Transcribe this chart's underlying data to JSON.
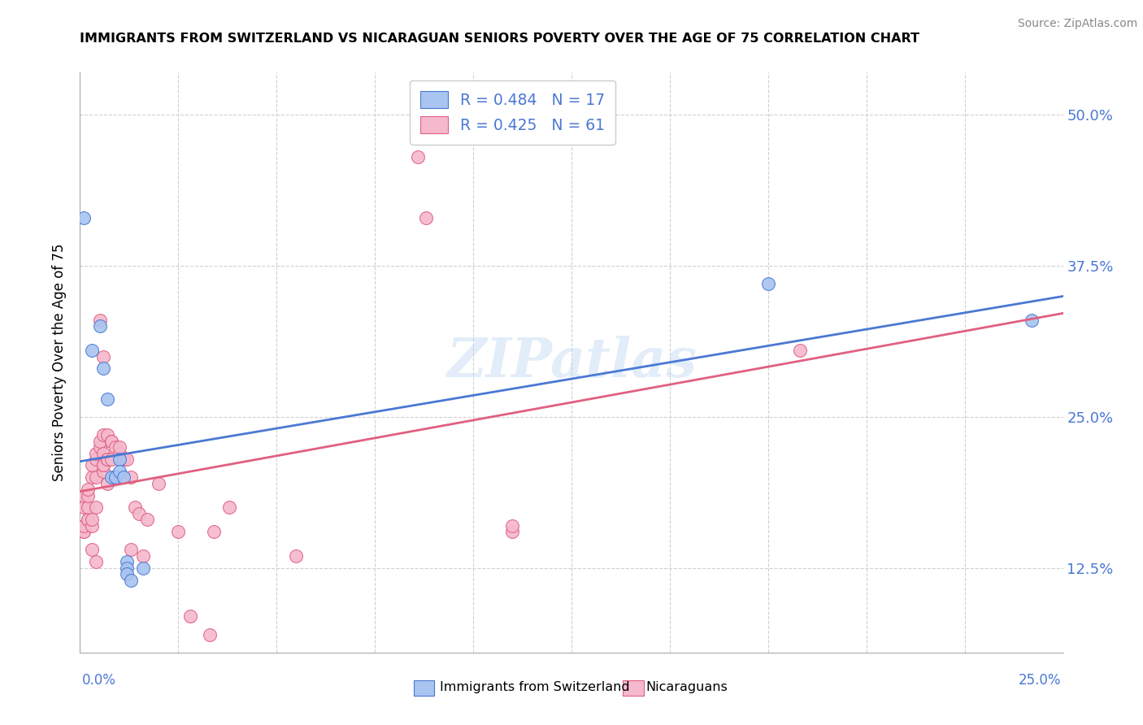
{
  "title": "IMMIGRANTS FROM SWITZERLAND VS NICARAGUAN SENIORS POVERTY OVER THE AGE OF 75 CORRELATION CHART",
  "source": "Source: ZipAtlas.com",
  "ylabel": "Seniors Poverty Over the Age of 75",
  "ytick_labels": [
    "12.5%",
    "25.0%",
    "37.5%",
    "50.0%"
  ],
  "ytick_values": [
    0.125,
    0.25,
    0.375,
    0.5
  ],
  "xmin": 0.0,
  "xmax": 0.25,
  "ymin": 0.055,
  "ymax": 0.535,
  "watermark": "ZIPatlas",
  "legend_blue_label": "R = 0.484   N = 17",
  "legend_pink_label": "R = 0.425   N = 61",
  "legend_sub_blue": "Immigrants from Switzerland",
  "legend_sub_pink": "Nicaraguans",
  "blue_color": "#a8c4f0",
  "pink_color": "#f5b8cc",
  "blue_line_color": "#4a78d4",
  "pink_line_color": "#e06080",
  "blue_scatter": [
    [
      0.001,
      0.415
    ],
    [
      0.003,
      0.305
    ],
    [
      0.005,
      0.325
    ],
    [
      0.006,
      0.29
    ],
    [
      0.007,
      0.265
    ],
    [
      0.008,
      0.2
    ],
    [
      0.009,
      0.2
    ],
    [
      0.01,
      0.215
    ],
    [
      0.01,
      0.205
    ],
    [
      0.011,
      0.2
    ],
    [
      0.012,
      0.13
    ],
    [
      0.012,
      0.125
    ],
    [
      0.012,
      0.12
    ],
    [
      0.013,
      0.115
    ],
    [
      0.016,
      0.125
    ],
    [
      0.175,
      0.36
    ],
    [
      0.242,
      0.33
    ]
  ],
  "pink_scatter": [
    [
      0.001,
      0.16
    ],
    [
      0.001,
      0.155
    ],
    [
      0.001,
      0.155
    ],
    [
      0.001,
      0.16
    ],
    [
      0.001,
      0.175
    ],
    [
      0.001,
      0.185
    ],
    [
      0.002,
      0.165
    ],
    [
      0.002,
      0.165
    ],
    [
      0.002,
      0.175
    ],
    [
      0.002,
      0.185
    ],
    [
      0.002,
      0.19
    ],
    [
      0.003,
      0.14
    ],
    [
      0.003,
      0.16
    ],
    [
      0.003,
      0.165
    ],
    [
      0.003,
      0.2
    ],
    [
      0.003,
      0.21
    ],
    [
      0.004,
      0.13
    ],
    [
      0.004,
      0.175
    ],
    [
      0.004,
      0.2
    ],
    [
      0.004,
      0.215
    ],
    [
      0.004,
      0.22
    ],
    [
      0.005,
      0.225
    ],
    [
      0.005,
      0.23
    ],
    [
      0.005,
      0.33
    ],
    [
      0.006,
      0.205
    ],
    [
      0.006,
      0.21
    ],
    [
      0.006,
      0.21
    ],
    [
      0.006,
      0.22
    ],
    [
      0.006,
      0.235
    ],
    [
      0.006,
      0.3
    ],
    [
      0.007,
      0.195
    ],
    [
      0.007,
      0.215
    ],
    [
      0.007,
      0.215
    ],
    [
      0.007,
      0.235
    ],
    [
      0.008,
      0.215
    ],
    [
      0.008,
      0.23
    ],
    [
      0.008,
      0.23
    ],
    [
      0.009,
      0.2
    ],
    [
      0.009,
      0.225
    ],
    [
      0.01,
      0.22
    ],
    [
      0.01,
      0.225
    ],
    [
      0.011,
      0.215
    ],
    [
      0.012,
      0.215
    ],
    [
      0.013,
      0.14
    ],
    [
      0.013,
      0.2
    ],
    [
      0.014,
      0.175
    ],
    [
      0.015,
      0.17
    ],
    [
      0.016,
      0.135
    ],
    [
      0.017,
      0.165
    ],
    [
      0.02,
      0.195
    ],
    [
      0.025,
      0.155
    ],
    [
      0.028,
      0.085
    ],
    [
      0.033,
      0.07
    ],
    [
      0.034,
      0.155
    ],
    [
      0.038,
      0.175
    ],
    [
      0.055,
      0.135
    ],
    [
      0.086,
      0.465
    ],
    [
      0.088,
      0.415
    ],
    [
      0.11,
      0.155
    ],
    [
      0.11,
      0.16
    ],
    [
      0.183,
      0.305
    ]
  ]
}
